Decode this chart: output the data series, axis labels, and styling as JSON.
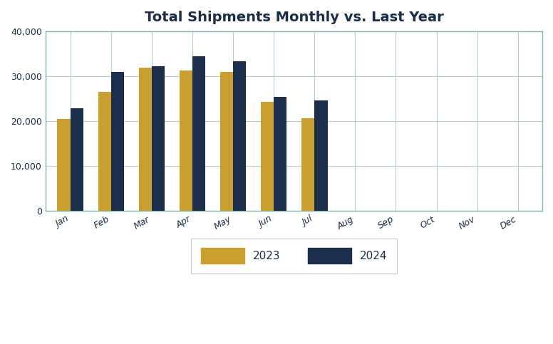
{
  "title": "Total Shipments Monthly vs. Last Year",
  "months": [
    "Jan",
    "Feb",
    "Mar",
    "Apr",
    "May",
    "Jun",
    "Jul",
    "Aug",
    "Sep",
    "Oct",
    "Nov",
    "Dec"
  ],
  "values_2023": [
    20400,
    26400,
    31900,
    31200,
    31000,
    24300,
    20600,
    null,
    null,
    null,
    null,
    null
  ],
  "values_2024": [
    22900,
    31000,
    32200,
    34500,
    33300,
    25400,
    24500,
    null,
    null,
    null,
    null,
    null
  ],
  "color_2023": "#C9A030",
  "color_2024": "#1B2E4B",
  "ylim": [
    0,
    40000
  ],
  "yticks": [
    0,
    10000,
    20000,
    30000,
    40000
  ],
  "ytick_labels": [
    "0",
    "10,000",
    "20,000",
    "30,000",
    "40,000"
  ],
  "legend_label_2023": "2023",
  "legend_label_2024": "2024",
  "title_color": "#1B2E4B",
  "tick_color": "#1B2E4B",
  "grid_color": "#B0D0D0",
  "spine_color": "#7FB5B5",
  "background_color": "#FFFFFF",
  "bar_width": 0.32,
  "title_fontsize": 14,
  "tick_fontsize": 9,
  "legend_fontsize": 11
}
